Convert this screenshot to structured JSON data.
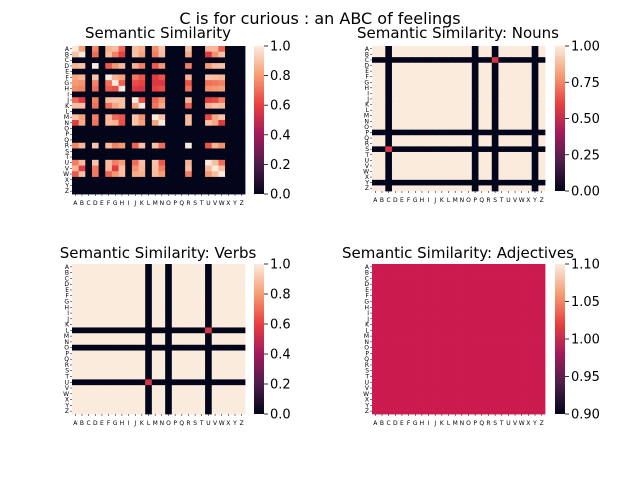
{
  "suptitle": "C is for curious : an ABC of feelings",
  "letters": [
    "A",
    "B",
    "C",
    "D",
    "E",
    "F",
    "G",
    "H",
    "I",
    "J",
    "K",
    "L",
    "M",
    "N",
    "O",
    "P",
    "Q",
    "R",
    "S",
    "T",
    "U",
    "V",
    "W",
    "X",
    "Y",
    "Z"
  ],
  "chart_data": [
    {
      "type": "heatmap",
      "title": "Semantic Similarity",
      "colorbar": {
        "range": [
          0,
          1
        ],
        "ticks": [
          "0.0",
          "0.2",
          "0.4",
          "0.6",
          "0.8",
          "1.0"
        ]
      },
      "zero_rows": [
        "C",
        "E",
        "I",
        "L",
        "O",
        "P",
        "Q",
        "S",
        "T",
        "X",
        "Y",
        "Z"
      ],
      "base_value": 0.7
    },
    {
      "type": "heatmap",
      "title": "Semantic Similarity: Nouns",
      "colorbar": {
        "range": [
          0,
          1
        ],
        "ticks": [
          "0.00",
          "0.25",
          "0.50",
          "0.75",
          "1.00"
        ]
      },
      "zero_rows": [
        "C",
        "P",
        "S",
        "Y"
      ],
      "base_value": 1.0,
      "offdiag": [
        {
          "row": "C",
          "col": "S",
          "value": 0.55
        },
        {
          "row": "S",
          "col": "C",
          "value": 0.55
        }
      ]
    },
    {
      "type": "heatmap",
      "title": "Semantic Similarity: Verbs",
      "colorbar": {
        "range": [
          0,
          1
        ],
        "ticks": [
          "0.0",
          "0.2",
          "0.4",
          "0.6",
          "0.8",
          "1.0"
        ]
      },
      "zero_rows": [
        "L",
        "O",
        "U"
      ],
      "base_value": 1.0,
      "offdiag": [
        {
          "row": "L",
          "col": "U",
          "value": 0.55
        },
        {
          "row": "U",
          "col": "L",
          "value": 0.55
        }
      ]
    },
    {
      "type": "heatmap",
      "title": "Semantic Similarity: Adjectives",
      "colorbar": {
        "range": [
          0.9,
          1.1
        ],
        "ticks": [
          "0.90",
          "0.95",
          "1.00",
          "1.05",
          "1.10"
        ]
      },
      "zero_rows": [],
      "base_value": 1.0,
      "uniform": true
    }
  ]
}
